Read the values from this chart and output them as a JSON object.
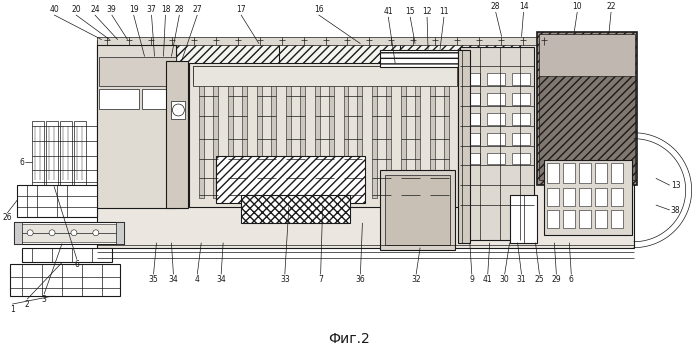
{
  "caption": "Фиг.2",
  "bg": "#ffffff",
  "lc": "#1a1a1a",
  "gray1": "#c8c0b0",
  "gray2": "#a89880",
  "gray3": "#d8d0c0",
  "fig_w": 6.99,
  "fig_h": 3.54,
  "dpi": 100
}
